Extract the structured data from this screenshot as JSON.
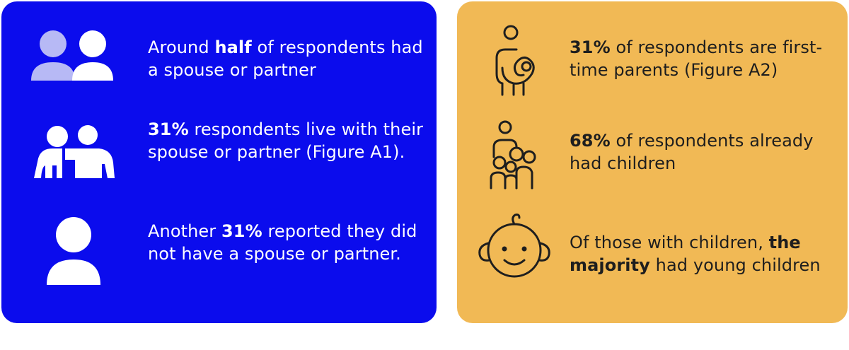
{
  "colors": {
    "left_bg": "#0b0ced",
    "right_bg": "#f1b955",
    "icon_light": "#b7b9f5",
    "icon_white": "#ffffff",
    "icon_dark": "#1e1e1e"
  },
  "left_panel": {
    "items": [
      {
        "icon": "two-people-icon",
        "parts": [
          {
            "t": "Around ",
            "b": false
          },
          {
            "t": "half",
            "b": true
          },
          {
            "t": " of respondents had a spouse or partner",
            "b": false
          }
        ]
      },
      {
        "icon": "couple-embrace-icon",
        "parts": [
          {
            "t": "31%",
            "b": true
          },
          {
            "t": " respondents live with their spouse or partner (Figure A1).",
            "b": false
          }
        ]
      },
      {
        "icon": "single-person-icon",
        "parts": [
          {
            "t": "Another ",
            "b": false
          },
          {
            "t": "31%",
            "b": true
          },
          {
            "t": " reported they did not have a spouse or partner.",
            "b": false
          }
        ]
      }
    ]
  },
  "right_panel": {
    "items": [
      {
        "icon": "parent-holding-baby-icon",
        "parts": [
          {
            "t": "31%",
            "b": true
          },
          {
            "t": " of respondents are first-time parents (Figure A2)",
            "b": false
          }
        ]
      },
      {
        "icon": "family-children-icon",
        "parts": [
          {
            "t": "68%",
            "b": true
          },
          {
            "t": " of respondents already had children",
            "b": false
          }
        ]
      },
      {
        "icon": "baby-face-icon",
        "parts": [
          {
            "t": "Of those with children, ",
            "b": false
          },
          {
            "t": "the majority",
            "b": true
          },
          {
            "t": " had young children",
            "b": false
          }
        ]
      }
    ]
  }
}
